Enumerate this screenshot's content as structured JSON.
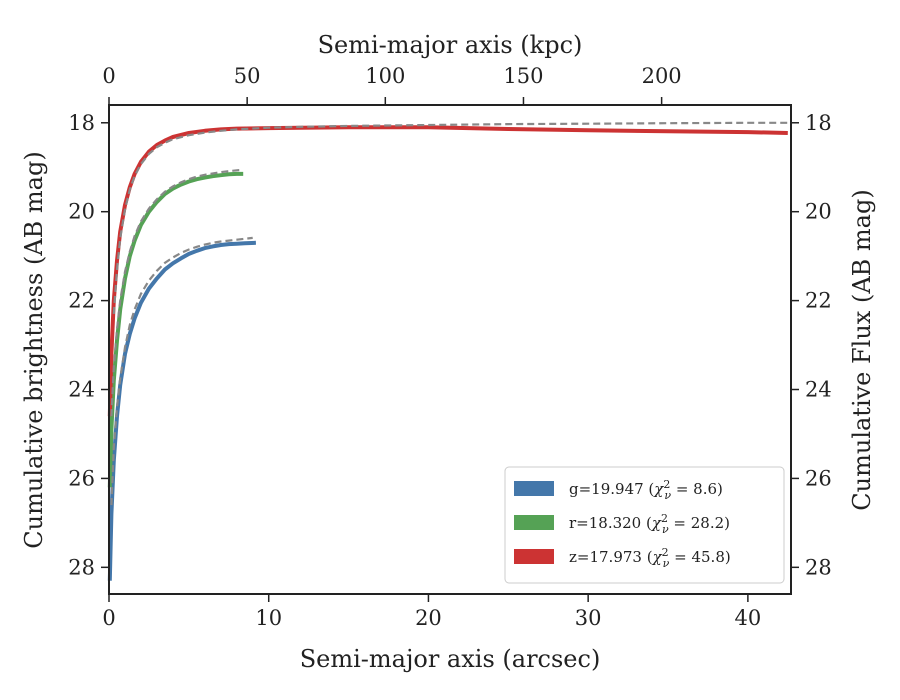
{
  "chart_data": {
    "type": "line",
    "xlabel": "Semi-major axis (arcsec)",
    "ylabel": "Cumulative brightness (AB mag)",
    "ylabel_right": "Cumulative Flux (AB mag)",
    "xlabel_top": "Semi-major axis (kpc)",
    "xlim": [
      0,
      42.7
    ],
    "ylim": [
      28.6,
      17.6
    ],
    "y_inverted": true,
    "x_ticks": [
      0,
      10,
      20,
      30,
      40
    ],
    "y_ticks": [
      18,
      20,
      22,
      24,
      26,
      28
    ],
    "x_top_ticks": [
      0,
      50,
      100,
      150,
      200
    ],
    "x_top_ticks_arcsec": [
      0,
      8.65,
      17.3,
      25.95,
      34.6
    ],
    "grid": false,
    "legend_position": "lower-right",
    "series": [
      {
        "name": "g=19.947 ($\\chi^2_\\nu = 8.6$)",
        "legend_text": "g=19.947 (",
        "legend_chi": "χ",
        "legend_sub": "ν",
        "legend_sup": "2",
        "legend_eq": " = 8.6)",
        "color": "#4477aa",
        "x": [
          0.05,
          0.15,
          0.3,
          0.5,
          0.7,
          1.0,
          1.3,
          1.6,
          2.0,
          2.5,
          3.0,
          3.5,
          4.0,
          4.5,
          5.0,
          5.5,
          6.0,
          6.5,
          7.0,
          7.5,
          8.0,
          8.5,
          9.2
        ],
        "y": [
          28.3,
          26.8,
          25.6,
          24.6,
          23.9,
          23.2,
          22.75,
          22.4,
          22.05,
          21.73,
          21.5,
          21.3,
          21.16,
          21.05,
          20.95,
          20.88,
          20.82,
          20.78,
          20.75,
          20.73,
          20.72,
          20.71,
          20.7
        ],
        "model_x": [
          0.15,
          0.3,
          0.5,
          0.7,
          1.0,
          1.3,
          1.6,
          2.0,
          2.5,
          3.0,
          3.5,
          4.0,
          4.5,
          5.0,
          5.5,
          6.0,
          6.5,
          7.0,
          7.5,
          8.0,
          8.5,
          9.0
        ],
        "model_y": [
          26.6,
          25.3,
          24.4,
          23.75,
          23.05,
          22.55,
          22.2,
          21.85,
          21.55,
          21.33,
          21.15,
          21.03,
          20.93,
          20.85,
          20.79,
          20.74,
          20.7,
          20.67,
          20.65,
          20.63,
          20.61,
          20.59
        ]
      },
      {
        "name": "r=18.320 ($\\chi^2_\\nu = 28.2$)",
        "legend_text": "r=18.320 (",
        "legend_chi": "χ",
        "legend_sub": "ν",
        "legend_sup": "2",
        "legend_eq": " = 28.2)",
        "color": "#55a255",
        "x": [
          0.05,
          0.15,
          0.3,
          0.5,
          0.7,
          1.0,
          1.3,
          1.6,
          2.0,
          2.5,
          3.0,
          3.5,
          4.0,
          4.5,
          5.0,
          5.5,
          6.0,
          6.5,
          7.0,
          7.5,
          8.0,
          8.4
        ],
        "y": [
          26.2,
          24.9,
          23.8,
          22.9,
          22.2,
          21.5,
          21.0,
          20.65,
          20.3,
          20.0,
          19.78,
          19.6,
          19.48,
          19.39,
          19.32,
          19.27,
          19.23,
          19.2,
          19.18,
          19.16,
          19.15,
          19.15
        ],
        "model_x": [
          0.15,
          0.3,
          0.5,
          0.7,
          1.0,
          1.3,
          1.6,
          2.0,
          2.5,
          3.0,
          3.5,
          4.0,
          4.5,
          5.0,
          5.5,
          6.0,
          6.5,
          7.0,
          7.5,
          8.0,
          8.4
        ],
        "model_y": [
          24.6,
          23.5,
          22.65,
          22.0,
          21.35,
          20.9,
          20.55,
          20.22,
          19.93,
          19.72,
          19.55,
          19.43,
          19.34,
          19.27,
          19.21,
          19.17,
          19.14,
          19.11,
          19.09,
          19.07,
          19.06
        ]
      },
      {
        "name": "z=17.973 ($\\chi^2_\\nu = 45.8$)",
        "legend_text": "z=17.973 (",
        "legend_chi": "χ",
        "legend_sub": "ν",
        "legend_sup": "2",
        "legend_eq": " = 45.8)",
        "color": "#cc3333",
        "x": [
          0.05,
          0.15,
          0.3,
          0.5,
          0.7,
          1.0,
          1.3,
          1.6,
          2.0,
          2.5,
          3.0,
          3.5,
          4.0,
          5.0,
          6.0,
          7.0,
          8.0,
          10.0,
          12.0,
          15.0,
          20.0,
          25.0,
          30.0,
          35.0,
          40.0,
          42.5
        ],
        "y": [
          24.6,
          23.2,
          22.0,
          21.1,
          20.45,
          19.85,
          19.45,
          19.15,
          18.88,
          18.65,
          18.5,
          18.4,
          18.32,
          18.23,
          18.18,
          18.15,
          18.13,
          18.12,
          18.11,
          18.1,
          18.1,
          18.14,
          18.17,
          18.19,
          18.21,
          18.23
        ],
        "model_x": [
          0.3,
          0.5,
          0.7,
          1.0,
          1.3,
          1.6,
          2.0,
          2.5,
          3.0,
          3.5,
          4.0,
          5.0,
          6.0,
          7.0,
          8.0,
          10.0,
          12.0,
          15.0,
          20.0,
          25.0,
          30.0,
          35.0,
          40.0,
          42.5
        ],
        "model_y": [
          22.3,
          21.3,
          20.6,
          19.95,
          19.5,
          19.2,
          18.93,
          18.7,
          18.55,
          18.45,
          18.37,
          18.28,
          18.22,
          18.18,
          18.15,
          18.11,
          18.09,
          18.07,
          18.05,
          18.03,
          18.02,
          18.01,
          18.0,
          18.0
        ]
      }
    ],
    "model_color": "#888888"
  }
}
